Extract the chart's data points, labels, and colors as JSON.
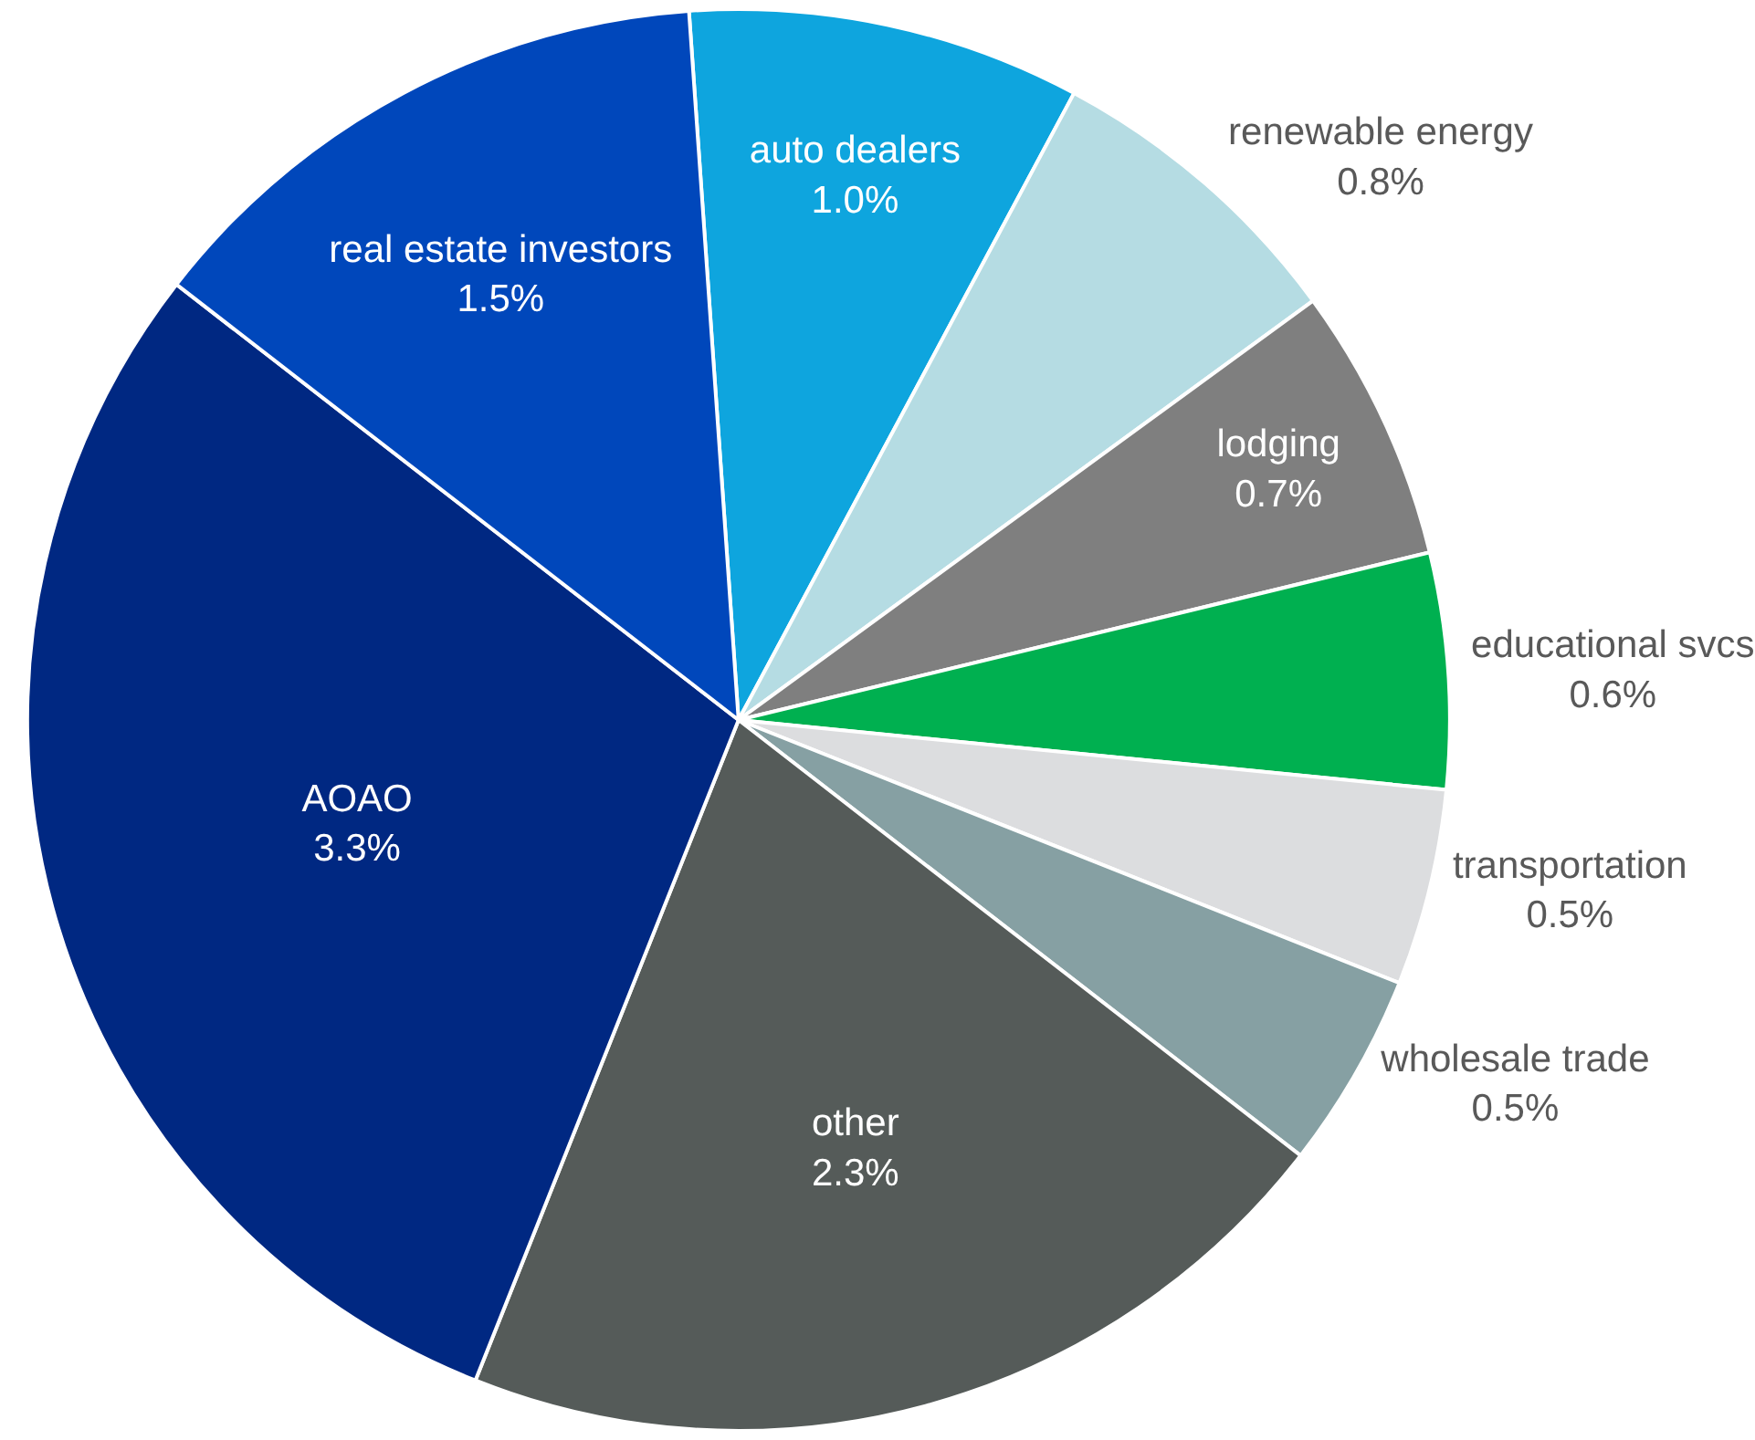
{
  "chart_data": {
    "type": "pie",
    "categories": [
      "auto dealers",
      "renewable energy",
      "lodging",
      "educational svcs",
      "transportation",
      "wholesale trade",
      "other",
      "AOAO",
      "real estate investors"
    ],
    "values": [
      1.0,
      0.8,
      0.7,
      0.6,
      0.5,
      0.5,
      2.3,
      3.3,
      1.5
    ],
    "value_labels": [
      "1.0%",
      "0.8%",
      "0.7%",
      "0.6%",
      "0.5%",
      "0.5%",
      "2.3%",
      "3.3%",
      "1.5%"
    ],
    "colors": [
      "#0ea5de",
      "#b5dce3",
      "#7f7f7f",
      "#00b050",
      "#dcdddf",
      "#86a0a3",
      "#555b59",
      "#002882",
      "#0047bb"
    ],
    "legend": false
  }
}
